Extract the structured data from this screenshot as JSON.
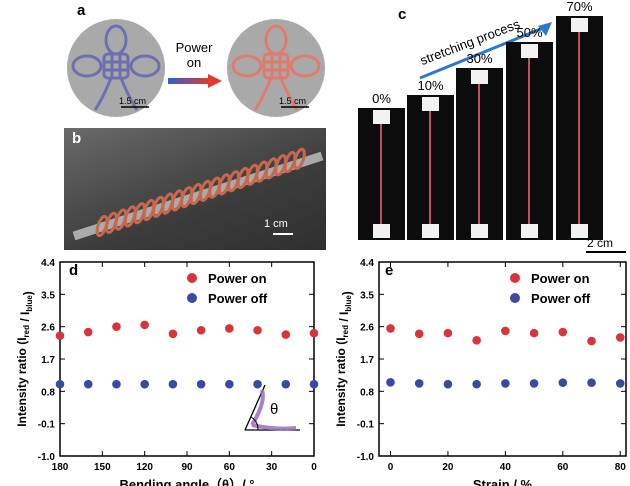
{
  "panels": {
    "a": {
      "letter": "a",
      "power_label_line1": "Power",
      "power_label_line2": "on",
      "scale_left": "1.5 cm",
      "scale_right": "1.5 cm",
      "colors": {
        "knot_off": "#6e6fb0",
        "knot_on": "#e07b6e",
        "arrow_blue": "#2f5fd0",
        "arrow_red": "#e23b2e"
      },
      "icons": [
        "knot-icon",
        "knot-icon",
        "arrow-right-icon"
      ]
    },
    "b": {
      "letter": "b",
      "scale": "1 cm",
      "colors": {
        "coil": "#c9674c",
        "background": "#4c4c4c"
      }
    },
    "c": {
      "letter": "c",
      "arrow_text": "stretching process",
      "strains": [
        "0%",
        "10%",
        "30%",
        "50%",
        "70%"
      ],
      "strain_fractions": [
        0,
        0.1,
        0.3,
        0.5,
        0.7
      ],
      "scale": "2 cm",
      "colors": {
        "arrow": "#2d78c8",
        "fiber": "#c0505a"
      }
    }
  },
  "chart_data": [
    {
      "panel": "d",
      "type": "scatter",
      "xlabel": "Bending angle（θ）/ °",
      "ylabel_main": "Intensity ratio (I",
      "ylabel_sub1": "red",
      "ylabel_mid": " / I",
      "ylabel_sub2": "blue",
      "ylabel_end": ")",
      "x_ticks": [
        "180",
        "150",
        "120",
        "90",
        "60",
        "30",
        "0"
      ],
      "y_ticks": [
        "4.4",
        "3.5",
        "2.6",
        "1.7",
        "0.8",
        "-0.1",
        "-1.0"
      ],
      "xlim": [
        180,
        0
      ],
      "ylim": [
        -1.0,
        4.4
      ],
      "inset_symbol": "θ",
      "series": [
        {
          "name": "Power on",
          "color": "#d8343a",
          "x": [
            180,
            160,
            140,
            120,
            100,
            80,
            60,
            40,
            20,
            0
          ],
          "y": [
            2.35,
            2.45,
            2.6,
            2.65,
            2.4,
            2.5,
            2.55,
            2.5,
            2.38,
            2.42
          ]
        },
        {
          "name": "Power off",
          "color": "#3b4aa0",
          "x": [
            180,
            160,
            140,
            120,
            100,
            80,
            60,
            40,
            20,
            0
          ],
          "y": [
            1.0,
            1.0,
            1.0,
            1.0,
            1.0,
            1.0,
            1.0,
            1.0,
            1.0,
            1.0
          ]
        }
      ],
      "legend": "top-right"
    },
    {
      "panel": "e",
      "type": "scatter",
      "xlabel": "Strain / %",
      "ylabel_main": "Intensity ratio (I",
      "ylabel_sub1": "red",
      "ylabel_mid": " / I",
      "ylabel_sub2": "blue",
      "ylabel_end": ")",
      "x_ticks": [
        "0",
        "20",
        "40",
        "60",
        "80"
      ],
      "y_ticks": [
        "4.4",
        "3.5",
        "2.6",
        "1.7",
        "0.8",
        "-0.1",
        "-1.0"
      ],
      "xlim": [
        -4,
        82
      ],
      "ylim": [
        -1.0,
        4.4
      ],
      "series": [
        {
          "name": "Power on",
          "color": "#d8343a",
          "x": [
            0,
            10,
            20,
            30,
            40,
            50,
            60,
            70,
            80
          ],
          "y": [
            2.55,
            2.4,
            2.42,
            2.22,
            2.48,
            2.42,
            2.45,
            2.2,
            2.3
          ]
        },
        {
          "name": "Power off",
          "color": "#3b4aa0",
          "x": [
            0,
            10,
            20,
            30,
            40,
            50,
            60,
            70,
            80
          ],
          "y": [
            1.05,
            1.02,
            1.0,
            1.0,
            1.02,
            1.02,
            1.04,
            1.04,
            1.02
          ]
        }
      ],
      "legend": "top-right"
    }
  ]
}
